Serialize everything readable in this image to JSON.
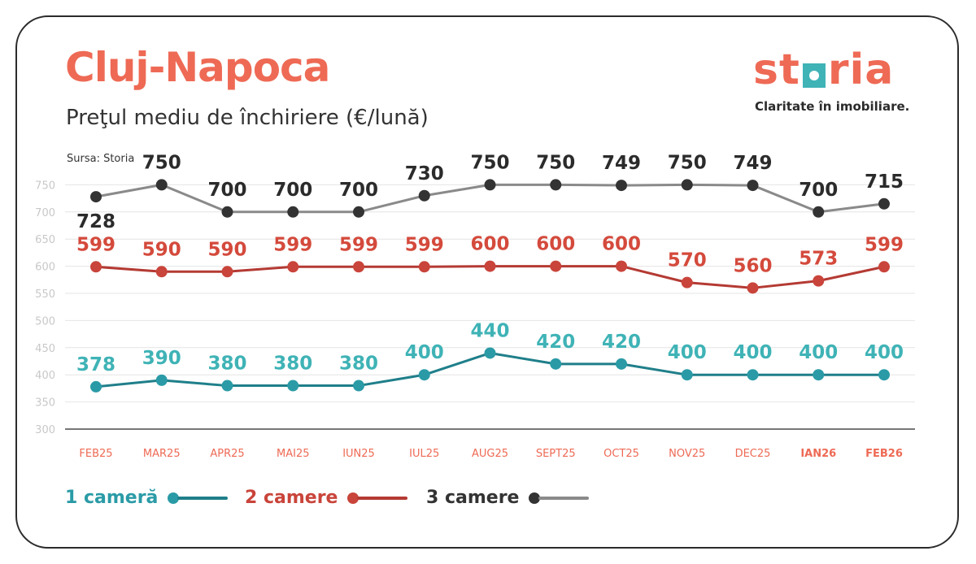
{
  "header": {
    "title": "Cluj-Napoca",
    "subtitle": "Preţul mediu de închiriere (€/lună)",
    "source": "Sursa: Storia"
  },
  "logo": {
    "word_left": "st",
    "word_right": "ria",
    "tagline": "Claritate în imobiliare.",
    "colors": {
      "brand": "#ee6a55",
      "accent": "#3fb3b6"
    }
  },
  "chart_data": {
    "type": "line",
    "title": "Preţul mediu de închiriere (€/lună)",
    "xlabel": "",
    "ylabel": "",
    "categories": [
      "FEB25",
      "MAR25",
      "APR25",
      "MAI25",
      "IUN25",
      "IUL25",
      "AUG25",
      "SEPT25",
      "OCT25",
      "NOV25",
      "DEC25",
      "IAN26",
      "FEB26"
    ],
    "bold_categories": [
      "IAN26",
      "FEB26"
    ],
    "yticks": [
      300,
      350,
      400,
      450,
      500,
      550,
      600,
      650,
      700,
      750
    ],
    "ylim": [
      300,
      775
    ],
    "grid": true,
    "legend_position": "bottom-left",
    "series": [
      {
        "name": "1 cameră",
        "color": "#2a9ba6",
        "label_color": "#3fb3b6",
        "line_color": "#1f7f8a",
        "values": [
          378,
          390,
          380,
          380,
          380,
          400,
          440,
          420,
          420,
          400,
          400,
          400,
          400
        ]
      },
      {
        "name": "2 camere",
        "color": "#c9443a",
        "label_color": "#d44a3c",
        "line_color": "#b43a33",
        "values": [
          599,
          590,
          590,
          599,
          599,
          599,
          600,
          600,
          600,
          570,
          560,
          573,
          599
        ]
      },
      {
        "name": "3 camere",
        "color": "#333333",
        "label_color": "#2b2b2b",
        "line_color": "#8a8a8a",
        "values": [
          728,
          750,
          700,
          700,
          700,
          730,
          750,
          750,
          749,
          750,
          749,
          700,
          715
        ]
      }
    ]
  }
}
